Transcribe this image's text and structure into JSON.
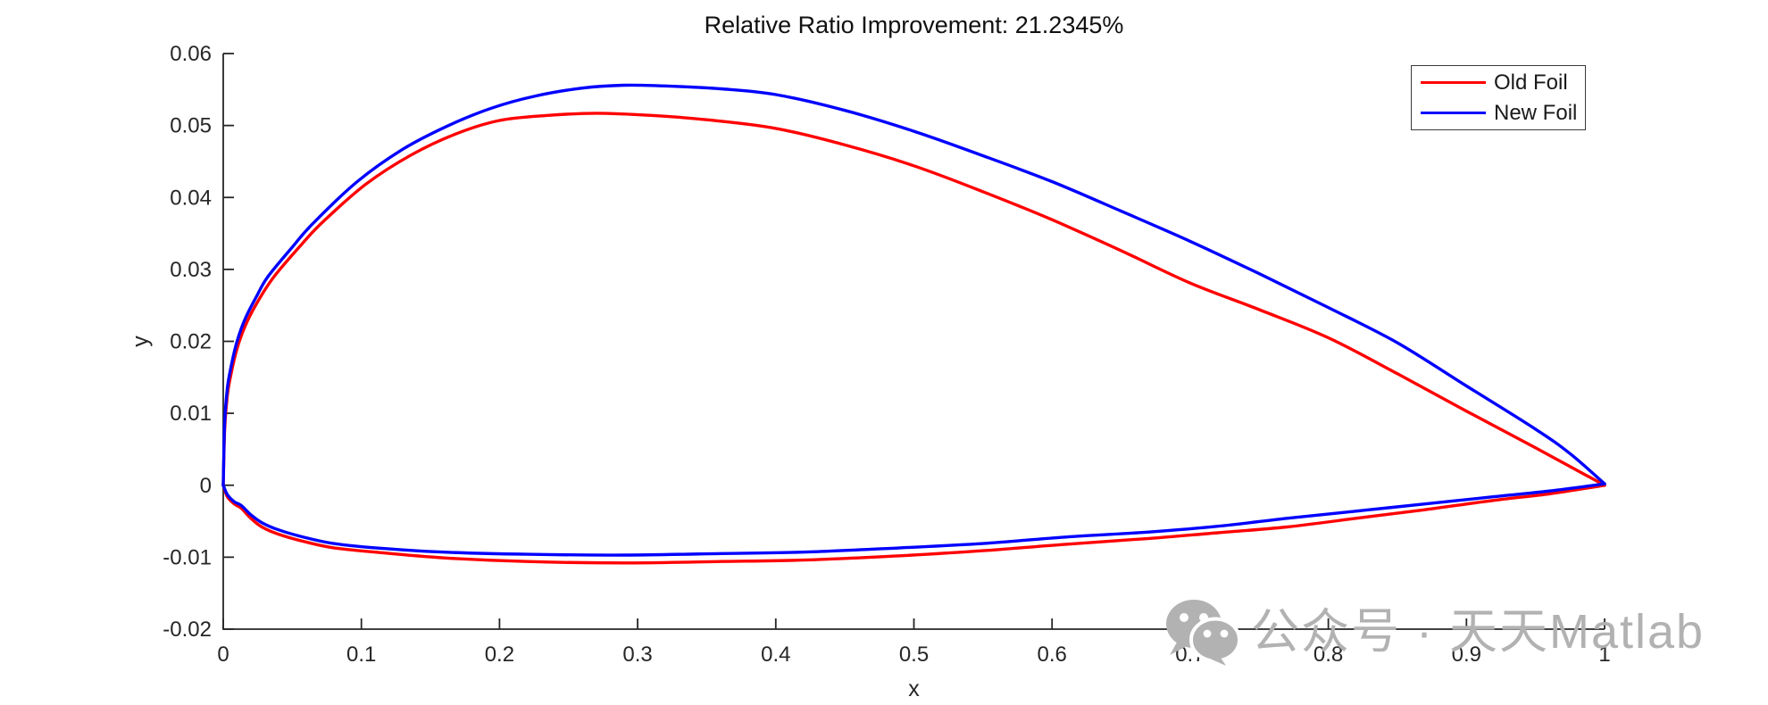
{
  "watermark": {
    "text": "公众号 · 天天Matlab",
    "icon": "wechat-icon",
    "color": "#b2b2b2"
  },
  "chart_data": {
    "type": "line",
    "title": "Relative Ratio Improvement: 21.2345%",
    "xlabel": "x",
    "ylabel": "y",
    "xlim": [
      0,
      1
    ],
    "ylim": [
      -0.02,
      0.06
    ],
    "grid": false,
    "axis_color": "#262626",
    "xticks": {
      "values": [
        0,
        0.1,
        0.2,
        0.3,
        0.4,
        0.5,
        0.6,
        0.7,
        0.8,
        0.9,
        1
      ],
      "labels": [
        "0",
        "0.1",
        "0.2",
        "0.3",
        "0.4",
        "0.5",
        "0.6",
        "0.7",
        "0.8",
        "0.9",
        "1"
      ]
    },
    "yticks": {
      "values": [
        -0.02,
        -0.01,
        0,
        0.01,
        0.02,
        0.03,
        0.04,
        0.05,
        0.06
      ],
      "labels": [
        "-0.02",
        "-0.01",
        "0",
        "0.01",
        "0.02",
        "0.03",
        "0.04",
        "0.05",
        "0.06"
      ]
    },
    "legend": {
      "position": "top-right",
      "items": [
        {
          "label": "Old Foil",
          "color": "#ff0000"
        },
        {
          "label": "New Foil",
          "color": "#0000ff"
        }
      ]
    },
    "series": [
      {
        "name": "Old Foil",
        "color": "#ff0000",
        "upper": [
          [
            0,
            0
          ],
          [
            0.001,
            0.0075
          ],
          [
            0.003,
            0.0125
          ],
          [
            0.006,
            0.0158
          ],
          [
            0.01,
            0.019
          ],
          [
            0.016,
            0.0222
          ],
          [
            0.024,
            0.0252
          ],
          [
            0.036,
            0.0288
          ],
          [
            0.055,
            0.0331
          ],
          [
            0.071,
            0.0364
          ],
          [
            0.103,
            0.0418
          ],
          [
            0.136,
            0.0459
          ],
          [
            0.168,
            0.0488
          ],
          [
            0.2,
            0.0507
          ],
          [
            0.235,
            0.0514
          ],
          [
            0.27,
            0.0517
          ],
          [
            0.31,
            0.0514
          ],
          [
            0.35,
            0.0508
          ],
          [
            0.4,
            0.0496
          ],
          [
            0.45,
            0.0473
          ],
          [
            0.5,
            0.0444
          ],
          [
            0.55,
            0.0408
          ],
          [
            0.6,
            0.0369
          ],
          [
            0.65,
            0.0326
          ],
          [
            0.7,
            0.0281
          ],
          [
            0.75,
            0.0244
          ],
          [
            0.8,
            0.0205
          ],
          [
            0.85,
            0.0155
          ],
          [
            0.9,
            0.0103
          ],
          [
            0.95,
            0.0052
          ],
          [
            1,
            0
          ]
        ],
        "lower": [
          [
            0,
            0
          ],
          [
            0.003,
            -0.0016
          ],
          [
            0.008,
            -0.0026
          ],
          [
            0.013,
            -0.0032
          ],
          [
            0.02,
            -0.0046
          ],
          [
            0.028,
            -0.0058
          ],
          [
            0.04,
            -0.0068
          ],
          [
            0.06,
            -0.0079
          ],
          [
            0.08,
            -0.0087
          ],
          [
            0.11,
            -0.0093
          ],
          [
            0.16,
            -0.0101
          ],
          [
            0.22,
            -0.0106
          ],
          [
            0.29,
            -0.0108
          ],
          [
            0.36,
            -0.0106
          ],
          [
            0.42,
            -0.0104
          ],
          [
            0.49,
            -0.0098
          ],
          [
            0.55,
            -0.0091
          ],
          [
            0.61,
            -0.0082
          ],
          [
            0.67,
            -0.0074
          ],
          [
            0.72,
            -0.0066
          ],
          [
            0.77,
            -0.0058
          ],
          [
            0.82,
            -0.0046
          ],
          [
            0.87,
            -0.0034
          ],
          [
            0.92,
            -0.0021
          ],
          [
            0.96,
            -0.0012
          ],
          [
            1,
            0
          ]
        ]
      },
      {
        "name": "New Foil",
        "color": "#0000ff",
        "upper": [
          [
            0,
            0
          ],
          [
            0.001,
            0.0085
          ],
          [
            0.003,
            0.0135
          ],
          [
            0.006,
            0.0168
          ],
          [
            0.01,
            0.02
          ],
          [
            0.016,
            0.0232
          ],
          [
            0.024,
            0.0262
          ],
          [
            0.032,
            0.0289
          ],
          [
            0.05,
            0.0331
          ],
          [
            0.065,
            0.0364
          ],
          [
            0.097,
            0.0422
          ],
          [
            0.13,
            0.0467
          ],
          [
            0.162,
            0.0499
          ],
          [
            0.194,
            0.0524
          ],
          [
            0.226,
            0.0541
          ],
          [
            0.26,
            0.0552
          ],
          [
            0.29,
            0.0556
          ],
          [
            0.32,
            0.0555
          ],
          [
            0.36,
            0.0551
          ],
          [
            0.4,
            0.0543
          ],
          [
            0.45,
            0.0521
          ],
          [
            0.5,
            0.0492
          ],
          [
            0.55,
            0.0458
          ],
          [
            0.6,
            0.0422
          ],
          [
            0.65,
            0.0381
          ],
          [
            0.7,
            0.0339
          ],
          [
            0.75,
            0.0294
          ],
          [
            0.8,
            0.0247
          ],
          [
            0.85,
            0.0198
          ],
          [
            0.9,
            0.0138
          ],
          [
            0.95,
            0.0078
          ],
          [
            0.975,
            0.0044
          ],
          [
            1,
            0.0002
          ]
        ],
        "lower": [
          [
            0,
            0
          ],
          [
            0.003,
            -0.0013
          ],
          [
            0.008,
            -0.0023
          ],
          [
            0.013,
            -0.0028
          ],
          [
            0.02,
            -0.0041
          ],
          [
            0.028,
            -0.0052
          ],
          [
            0.04,
            -0.0062
          ],
          [
            0.06,
            -0.0073
          ],
          [
            0.08,
            -0.0081
          ],
          [
            0.11,
            -0.0087
          ],
          [
            0.16,
            -0.0093
          ],
          [
            0.22,
            -0.0096
          ],
          [
            0.29,
            -0.0097
          ],
          [
            0.36,
            -0.0095
          ],
          [
            0.42,
            -0.0093
          ],
          [
            0.49,
            -0.0087
          ],
          [
            0.55,
            -0.0081
          ],
          [
            0.61,
            -0.0072
          ],
          [
            0.67,
            -0.0065
          ],
          [
            0.72,
            -0.0057
          ],
          [
            0.77,
            -0.0046
          ],
          [
            0.82,
            -0.0036
          ],
          [
            0.87,
            -0.0026
          ],
          [
            0.92,
            -0.0016
          ],
          [
            0.96,
            -0.0008
          ],
          [
            1,
            0.0002
          ]
        ]
      }
    ]
  }
}
